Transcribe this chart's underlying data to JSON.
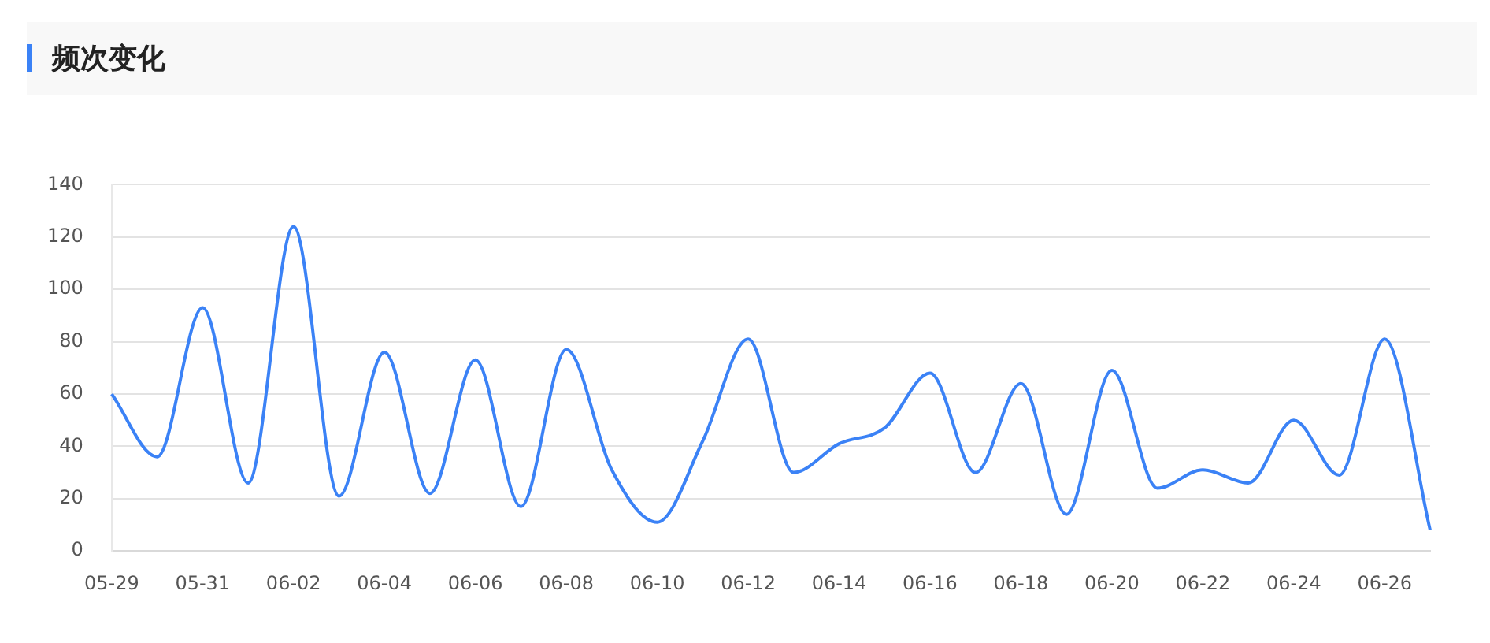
{
  "chart_data": {
    "type": "line",
    "title": "频次变化",
    "categories": [
      "05-29",
      null,
      "05-31",
      null,
      "06-02",
      null,
      "06-04",
      null,
      "06-06",
      null,
      "06-08",
      null,
      "06-10",
      null,
      "06-12",
      null,
      "06-14",
      null,
      "06-16",
      null,
      "06-18",
      null,
      "06-20",
      null,
      "06-22",
      null,
      "06-24",
      null,
      "06-26",
      null
    ],
    "series": [
      {
        "color": "#3b82f6",
        "values": [
          60,
          36,
          93,
          26,
          124,
          21,
          76,
          22,
          73,
          17,
          77,
          31,
          11,
          42,
          81,
          30,
          41,
          47,
          68,
          30,
          64,
          14,
          69,
          24,
          31,
          26,
          50,
          29,
          81,
          8
        ]
      }
    ],
    "ylim": [
      0,
      140
    ],
    "yticks": [
      0,
      20,
      40,
      60,
      80,
      100,
      120,
      140
    ],
    "grid": "y",
    "legend": false,
    "marker": "none",
    "line_style": "solid"
  }
}
